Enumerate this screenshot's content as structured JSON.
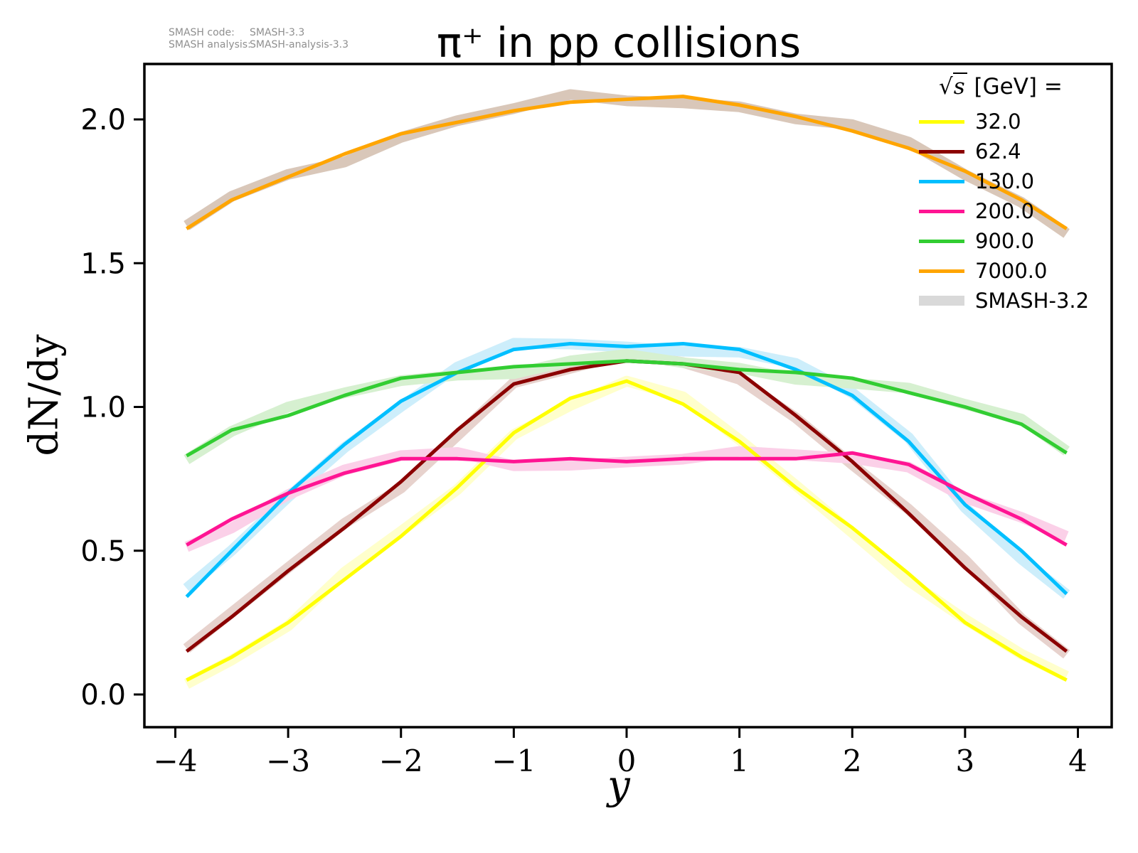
{
  "title": "π⁺ in pp collisions",
  "annotation": {
    "rows": [
      {
        "label": "SMASH code:",
        "value": "SMASH-3.3"
      },
      {
        "label": "SMASH analysis:",
        "value": "SMASH-analysis-3.3"
      }
    ]
  },
  "axes": {
    "xlabel": "y",
    "ylabel": "dN/dy",
    "x_tick_labels": [
      "−4",
      "−3",
      "−2",
      "−1",
      "0",
      "1",
      "2",
      "3",
      "4"
    ],
    "x_tick_values": [
      -4,
      -3,
      -2,
      -1,
      0,
      1,
      2,
      3,
      4
    ],
    "y_tick_labels": [
      "0.0",
      "0.5",
      "1.0",
      "1.5",
      "2.0"
    ],
    "y_tick_values": [
      0,
      0.5,
      1,
      1.5,
      2
    ]
  },
  "legend": {
    "title_sqrt": "√",
    "title_arg": "s",
    "title_rest": " [GeV] =",
    "entries": [
      {
        "label": "32.0",
        "color": "#ffff00"
      },
      {
        "label": "62.4",
        "color": "#8b0000"
      },
      {
        "label": "130.0",
        "color": "#00bfff"
      },
      {
        "label": "200.0",
        "color": "#ff1493"
      },
      {
        "label": "900.0",
        "color": "#32cd32"
      },
      {
        "label": "7000.0",
        "color": "#ffa500"
      },
      {
        "label": "SMASH-3.2",
        "color": "#d9d9d9",
        "band": true
      }
    ]
  },
  "chart_data": {
    "type": "line",
    "title": "π⁺ in pp collisions",
    "xlabel": "y",
    "ylabel": "dN/dy",
    "xlim": [
      -4.27,
      4.3
    ],
    "ylim": [
      -0.11,
      2.19
    ],
    "grid": false,
    "legend_position": "upper right",
    "legend_title": "√s [GeV] =",
    "comparison_band": {
      "name": "SMASH-3.2",
      "legend_color": "#d9d9d9",
      "style": "thick translucent band of each series color under its line"
    },
    "x": [
      -3.9,
      -3.5,
      -3.0,
      -2.5,
      -2.0,
      -1.5,
      -1.0,
      -0.5,
      0.0,
      0.5,
      1.0,
      1.5,
      2.0,
      2.5,
      3.0,
      3.5,
      3.9
    ],
    "series": [
      {
        "name": "32.0",
        "color": "#ffff00",
        "band_color": "#ffffcc",
        "values": [
          0.05,
          0.13,
          0.25,
          0.4,
          0.55,
          0.72,
          0.91,
          1.03,
          1.09,
          1.01,
          0.88,
          0.72,
          0.58,
          0.42,
          0.25,
          0.13,
          0.05
        ]
      },
      {
        "name": "62.4",
        "color": "#8b0000",
        "band_color": "#e7d2cd",
        "values": [
          0.15,
          0.27,
          0.43,
          0.58,
          0.74,
          0.92,
          1.08,
          1.13,
          1.16,
          1.15,
          1.12,
          0.97,
          0.81,
          0.63,
          0.44,
          0.27,
          0.15
        ]
      },
      {
        "name": "130.0",
        "color": "#00bfff",
        "band_color": "#cdeefb",
        "values": [
          0.34,
          0.5,
          0.7,
          0.87,
          1.02,
          1.12,
          1.2,
          1.22,
          1.21,
          1.22,
          1.2,
          1.13,
          1.04,
          0.88,
          0.66,
          0.5,
          0.35
        ]
      },
      {
        "name": "200.0",
        "color": "#ff1493",
        "band_color": "#fbd0e8",
        "values": [
          0.52,
          0.61,
          0.7,
          0.77,
          0.82,
          0.82,
          0.81,
          0.82,
          0.81,
          0.82,
          0.82,
          0.82,
          0.84,
          0.8,
          0.7,
          0.61,
          0.52
        ]
      },
      {
        "name": "900.0",
        "color": "#32cd32",
        "band_color": "#d6f0d0",
        "values": [
          0.83,
          0.92,
          0.97,
          1.04,
          1.1,
          1.12,
          1.14,
          1.15,
          1.16,
          1.15,
          1.13,
          1.12,
          1.1,
          1.05,
          1.0,
          0.94,
          0.84
        ]
      },
      {
        "name": "7000.0",
        "color": "#ffa500",
        "band_color": "#d9c7b9",
        "values": [
          1.62,
          1.72,
          1.8,
          1.88,
          1.95,
          1.99,
          2.03,
          2.06,
          2.07,
          2.08,
          2.05,
          2.01,
          1.96,
          1.9,
          1.82,
          1.72,
          1.62
        ]
      }
    ]
  }
}
